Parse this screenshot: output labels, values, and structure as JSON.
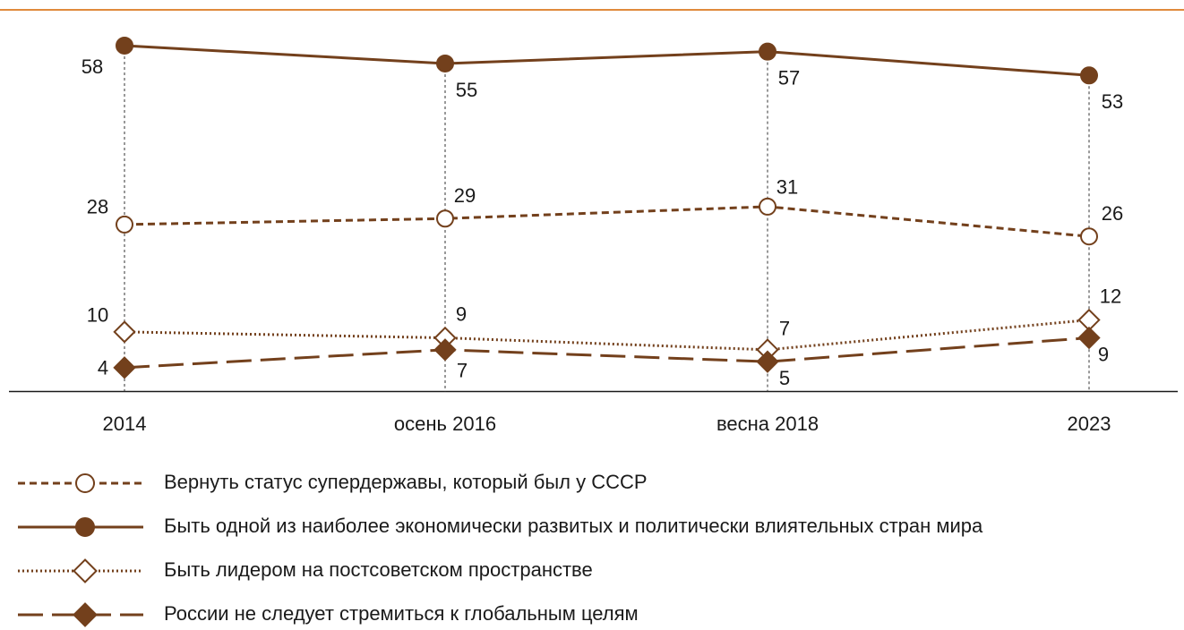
{
  "chart_data": {
    "type": "line",
    "categories": [
      "2014",
      "осень 2016",
      "весна 2018",
      "2023"
    ],
    "ylim": [
      0,
      64
    ],
    "series": [
      {
        "name": "Вернуть статус супердержавы, который был у СССР",
        "color": "#73401c",
        "line_style": "dashed",
        "marker": "open-circle",
        "values": [
          28,
          29,
          31,
          26
        ]
      },
      {
        "name": "Быть одной из наиболее экономически развитых и политически влиятельных стран мира",
        "color": "#73401c",
        "line_style": "solid",
        "marker": "filled-circle",
        "values": [
          58,
          55,
          57,
          53
        ]
      },
      {
        "name": "Быть лидером на постсоветском пространстве",
        "color": "#73401c",
        "line_style": "dotted",
        "marker": "open-diamond",
        "values": [
          10,
          9,
          7,
          12
        ]
      },
      {
        "name": "России не следует стремиться к глобальным целям",
        "color": "#73401c",
        "line_style": "long-dashed",
        "marker": "filled-diamond",
        "values": [
          4,
          7,
          5,
          9
        ]
      }
    ]
  }
}
